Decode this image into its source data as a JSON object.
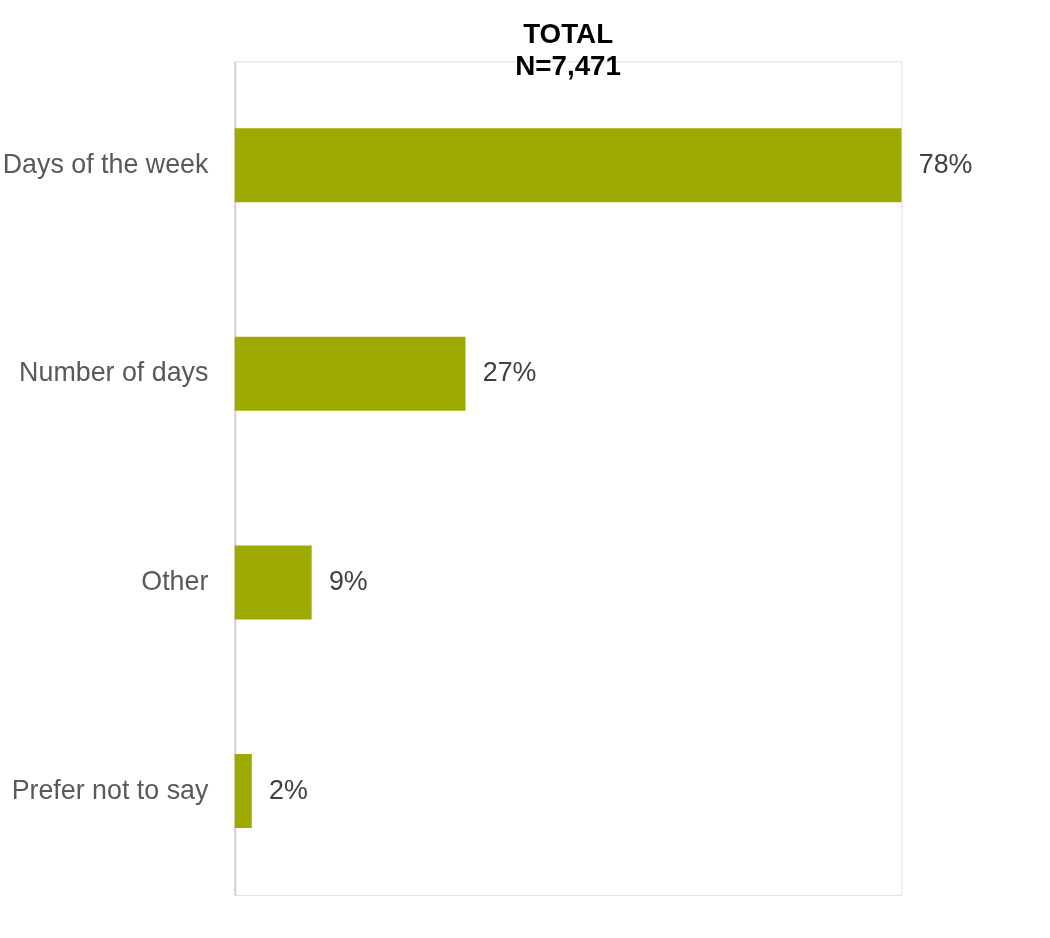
{
  "chart_data": {
    "type": "bar",
    "orientation": "horizontal",
    "title": "TOTAL",
    "subtitle": "N=7,471",
    "categories": [
      "Days of the week",
      "Number of days",
      "Other",
      "Prefer not to say"
    ],
    "values": [
      78,
      27,
      9,
      2
    ],
    "value_labels": [
      "78%",
      "27%",
      "9%",
      "2%"
    ],
    "color": "#9faa00"
  }
}
